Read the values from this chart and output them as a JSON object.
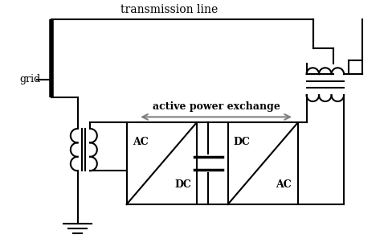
{
  "background_color": "#ffffff",
  "line_color": "#000000",
  "title_text": "transmission line",
  "grid_label": "grid",
  "arrow_label": "active power exchange",
  "box1_top": "AC",
  "box1_bot": "DC",
  "box2_top": "DC",
  "box2_bot": "AC",
  "fig_width": 4.83,
  "fig_height": 3.12,
  "dpi": 100
}
